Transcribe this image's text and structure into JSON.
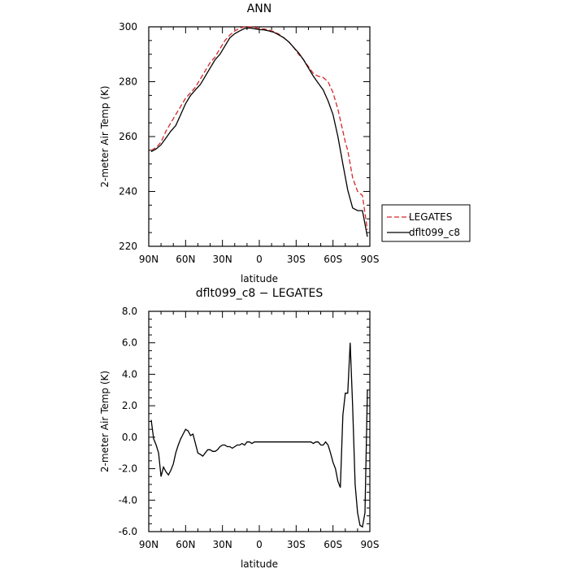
{
  "chart_data": [
    {
      "type": "line",
      "title": "ANN",
      "xlabel": "latitude",
      "ylabel": "2-meter Air Temp (K)",
      "xlim": [
        90,
        -90
      ],
      "ylim": [
        220,
        300
      ],
      "x_ticks": [
        {
          "v": 90,
          "label": "90N"
        },
        {
          "v": 60,
          "label": "60N"
        },
        {
          "v": 30,
          "label": "30N"
        },
        {
          "v": 0,
          "label": "0"
        },
        {
          "v": -30,
          "label": "30S"
        },
        {
          "v": -60,
          "label": "60S"
        },
        {
          "v": -90,
          "label": "90S"
        }
      ],
      "y_ticks": [
        {
          "v": 220,
          "label": "220"
        },
        {
          "v": 240,
          "label": "240"
        },
        {
          "v": 260,
          "label": "260"
        },
        {
          "v": 280,
          "label": "280"
        },
        {
          "v": 300,
          "label": "300"
        }
      ],
      "legend": {
        "placement": "right",
        "entries": [
          {
            "name": "LEGATES",
            "color": "#d62728",
            "dash": true
          },
          {
            "name": "dflt099_c8",
            "color": "#000000",
            "dash": false
          }
        ]
      },
      "series": [
        {
          "name": "LEGATES",
          "color": "#d62728",
          "dash": true,
          "x": [
            88,
            84,
            80,
            76,
            72,
            68,
            64,
            60,
            56,
            52,
            48,
            44,
            40,
            36,
            32,
            28,
            24,
            20,
            16,
            12,
            8,
            4,
            0,
            -4,
            -8,
            -12,
            -16,
            -20,
            -24,
            -28,
            -32,
            -36,
            -40,
            -44,
            -48,
            -52,
            -56,
            -60,
            -64,
            -68,
            -70,
            -72,
            -76,
            -80,
            -84,
            -88
          ],
          "y": [
            255,
            256,
            258,
            262,
            265,
            268,
            271,
            274,
            276,
            278,
            281,
            284,
            287,
            289,
            292,
            295,
            297,
            298.5,
            299.5,
            300,
            300,
            299.8,
            299.3,
            299.2,
            298.8,
            298.2,
            297.3,
            296,
            294.5,
            292.5,
            290,
            288,
            285.5,
            283,
            282,
            281.5,
            280,
            276,
            270,
            262,
            258,
            255,
            245,
            240,
            238.5,
            226
          ]
        },
        {
          "name": "dflt099_c8",
          "color": "#000000",
          "dash": false,
          "x": [
            88,
            84,
            80,
            76,
            72,
            68,
            64,
            60,
            56,
            52,
            48,
            44,
            40,
            36,
            32,
            28,
            24,
            20,
            16,
            12,
            8,
            4,
            0,
            -4,
            -8,
            -12,
            -16,
            -20,
            -24,
            -28,
            -32,
            -36,
            -40,
            -44,
            -48,
            -52,
            -56,
            -60,
            -64,
            -68,
            -72,
            -76,
            -80,
            -84,
            -88
          ],
          "y": [
            254.5,
            255.5,
            257,
            259.5,
            262,
            264,
            268,
            272,
            275,
            277,
            279,
            282,
            285,
            288,
            290,
            293,
            296,
            297.5,
            298.5,
            299.4,
            299.6,
            299.3,
            299,
            298.9,
            298.5,
            298,
            297,
            296,
            294.5,
            292.5,
            290.5,
            288,
            285,
            282,
            279.5,
            277,
            273,
            268,
            260,
            250,
            240.5,
            234,
            233,
            233,
            223.5
          ]
        }
      ]
    },
    {
      "type": "line",
      "title": "dflt099_c8 − LEGATES",
      "xlabel": "latitude",
      "ylabel": "2-meter Air Temp (K)",
      "xlim": [
        90,
        -90
      ],
      "ylim": [
        -6,
        8
      ],
      "x_ticks": [
        {
          "v": 90,
          "label": "90N"
        },
        {
          "v": 60,
          "label": "60N"
        },
        {
          "v": 30,
          "label": "30N"
        },
        {
          "v": 0,
          "label": "0"
        },
        {
          "v": -30,
          "label": "30S"
        },
        {
          "v": -60,
          "label": "60S"
        },
        {
          "v": -90,
          "label": "90S"
        }
      ],
      "y_ticks": [
        {
          "v": -6,
          "label": "-6.0"
        },
        {
          "v": -4,
          "label": "-4.0"
        },
        {
          "v": -2,
          "label": "-2.0"
        },
        {
          "v": 0,
          "label": "0.0"
        },
        {
          "v": 2,
          "label": "2.0"
        },
        {
          "v": 4,
          "label": "4.0"
        },
        {
          "v": 6,
          "label": "6.0"
        },
        {
          "v": 8,
          "label": "8.0"
        }
      ],
      "series": [
        {
          "color": "#000000",
          "dash": false,
          "x": [
            88,
            86,
            84,
            82,
            80,
            78,
            76,
            74,
            72,
            70,
            68,
            66,
            64,
            62,
            60,
            58,
            56,
            54,
            52,
            50,
            48,
            46,
            44,
            42,
            40,
            38,
            36,
            34,
            32,
            30,
            28,
            26,
            24,
            22,
            20,
            18,
            16,
            14,
            12,
            10,
            8,
            6,
            4,
            2,
            0,
            -2,
            -4,
            -6,
            -8,
            -10,
            -12,
            -14,
            -16,
            -18,
            -20,
            -22,
            -24,
            -26,
            -28,
            -30,
            -32,
            -34,
            -36,
            -38,
            -40,
            -42,
            -44,
            -46,
            -48,
            -50,
            -52,
            -54,
            -56,
            -58,
            -60,
            -62,
            -64,
            -66,
            -68,
            -70,
            -72,
            -74,
            -76,
            -78,
            -80,
            -82,
            -84,
            -86,
            -88
          ],
          "y": [
            1.1,
            -0.1,
            -0.5,
            -1.0,
            -2.5,
            -1.9,
            -2.2,
            -2.4,
            -2.1,
            -1.7,
            -1.0,
            -0.5,
            -0.1,
            0.2,
            0.5,
            0.4,
            0.1,
            0.2,
            -0.4,
            -1.0,
            -1.1,
            -1.2,
            -1.0,
            -0.8,
            -0.8,
            -0.9,
            -0.9,
            -0.8,
            -0.6,
            -0.5,
            -0.5,
            -0.6,
            -0.6,
            -0.7,
            -0.6,
            -0.5,
            -0.5,
            -0.4,
            -0.5,
            -0.3,
            -0.3,
            -0.4,
            -0.3,
            -0.3,
            -0.3,
            -0.3,
            -0.3,
            -0.3,
            -0.3,
            -0.3,
            -0.3,
            -0.3,
            -0.3,
            -0.3,
            -0.3,
            -0.3,
            -0.3,
            -0.3,
            -0.3,
            -0.3,
            -0.3,
            -0.3,
            -0.3,
            -0.3,
            -0.3,
            -0.3,
            -0.4,
            -0.3,
            -0.3,
            -0.5,
            -0.5,
            -0.3,
            -0.5,
            -1.0,
            -1.6,
            -2.0,
            -2.8,
            -3.2,
            1.4,
            2.8,
            2.8,
            6.0,
            2.0,
            -3.0,
            -4.8,
            -5.6,
            -5.7,
            -4.8,
            3.0
          ]
        }
      ]
    }
  ]
}
